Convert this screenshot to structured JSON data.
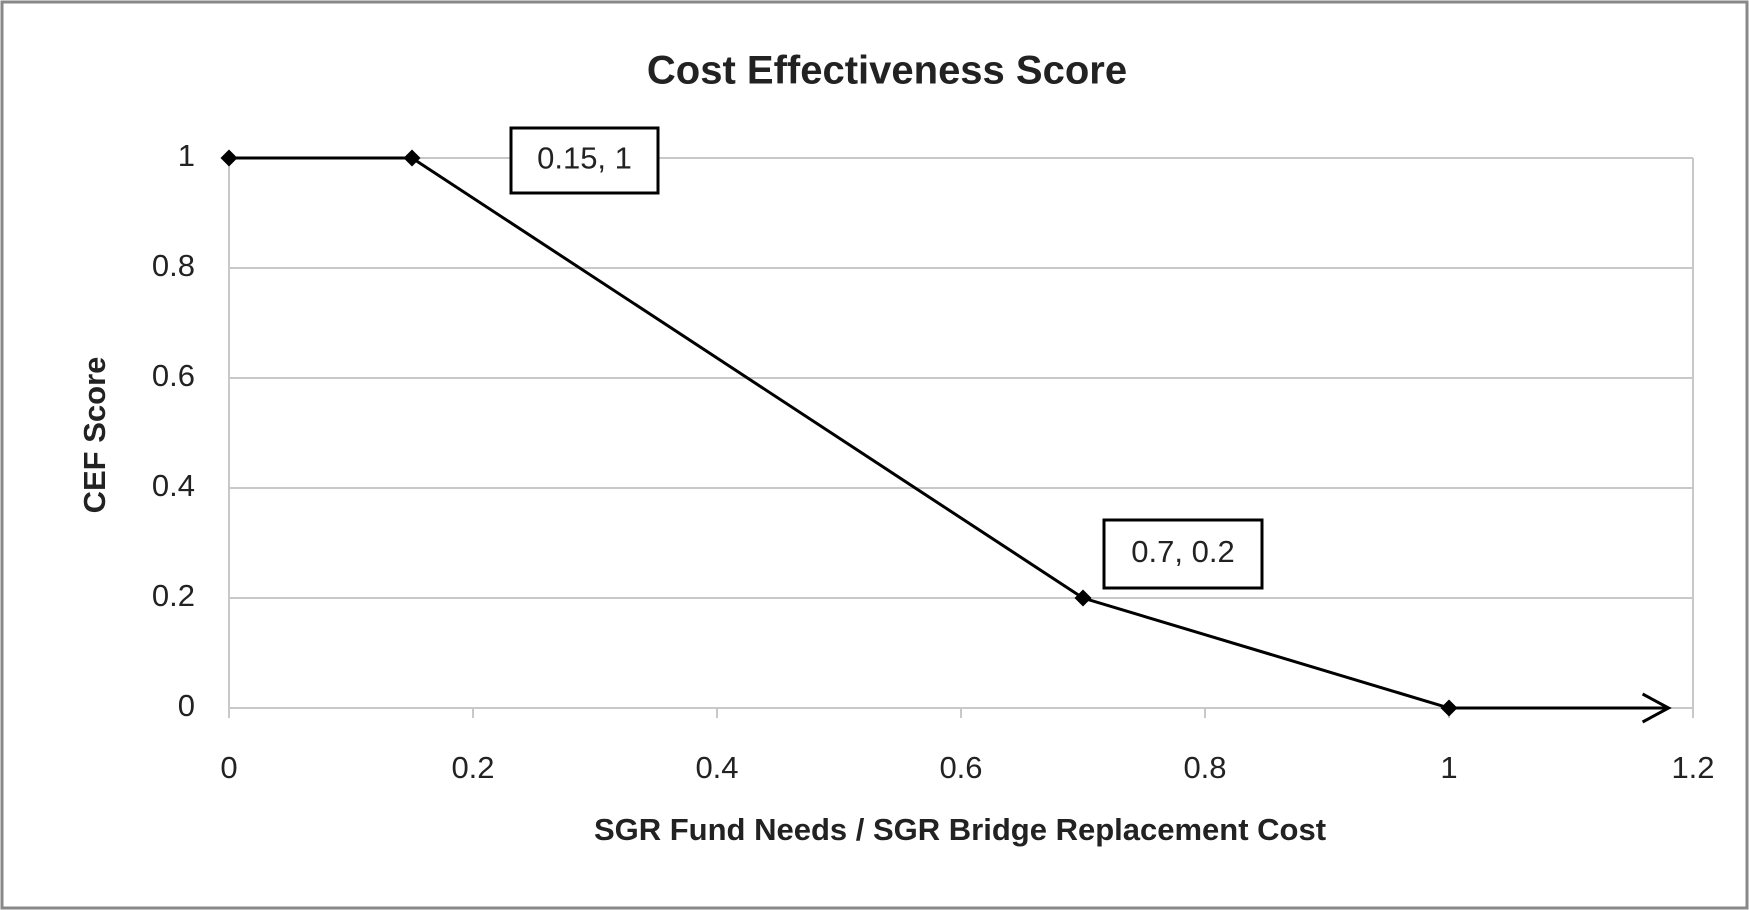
{
  "chart_data": {
    "type": "line",
    "title": "Cost Effectiveness Score",
    "xlabel": "SGR Fund Needs / SGR Bridge Replacement Cost",
    "ylabel": "CEF  Score",
    "x": [
      0,
      0.15,
      0.7,
      1,
      1.18
    ],
    "values": [
      1,
      1,
      0.2,
      0,
      0
    ],
    "color": "#000000",
    "xlim": [
      0,
      1.2
    ],
    "xticks": [
      0,
      0.2,
      0.4,
      0.6,
      0.8,
      1,
      1.2
    ],
    "ylim": [
      0,
      1
    ],
    "yticks": [
      0,
      0.2,
      0.4,
      0.6,
      0.8,
      1
    ],
    "grid": true,
    "annotations": [
      {
        "text": "0.15, 1",
        "x": 0.15,
        "y": 1
      },
      {
        "text": "0.7, 0.2",
        "x": 0.7,
        "y": 0.2
      }
    ]
  }
}
